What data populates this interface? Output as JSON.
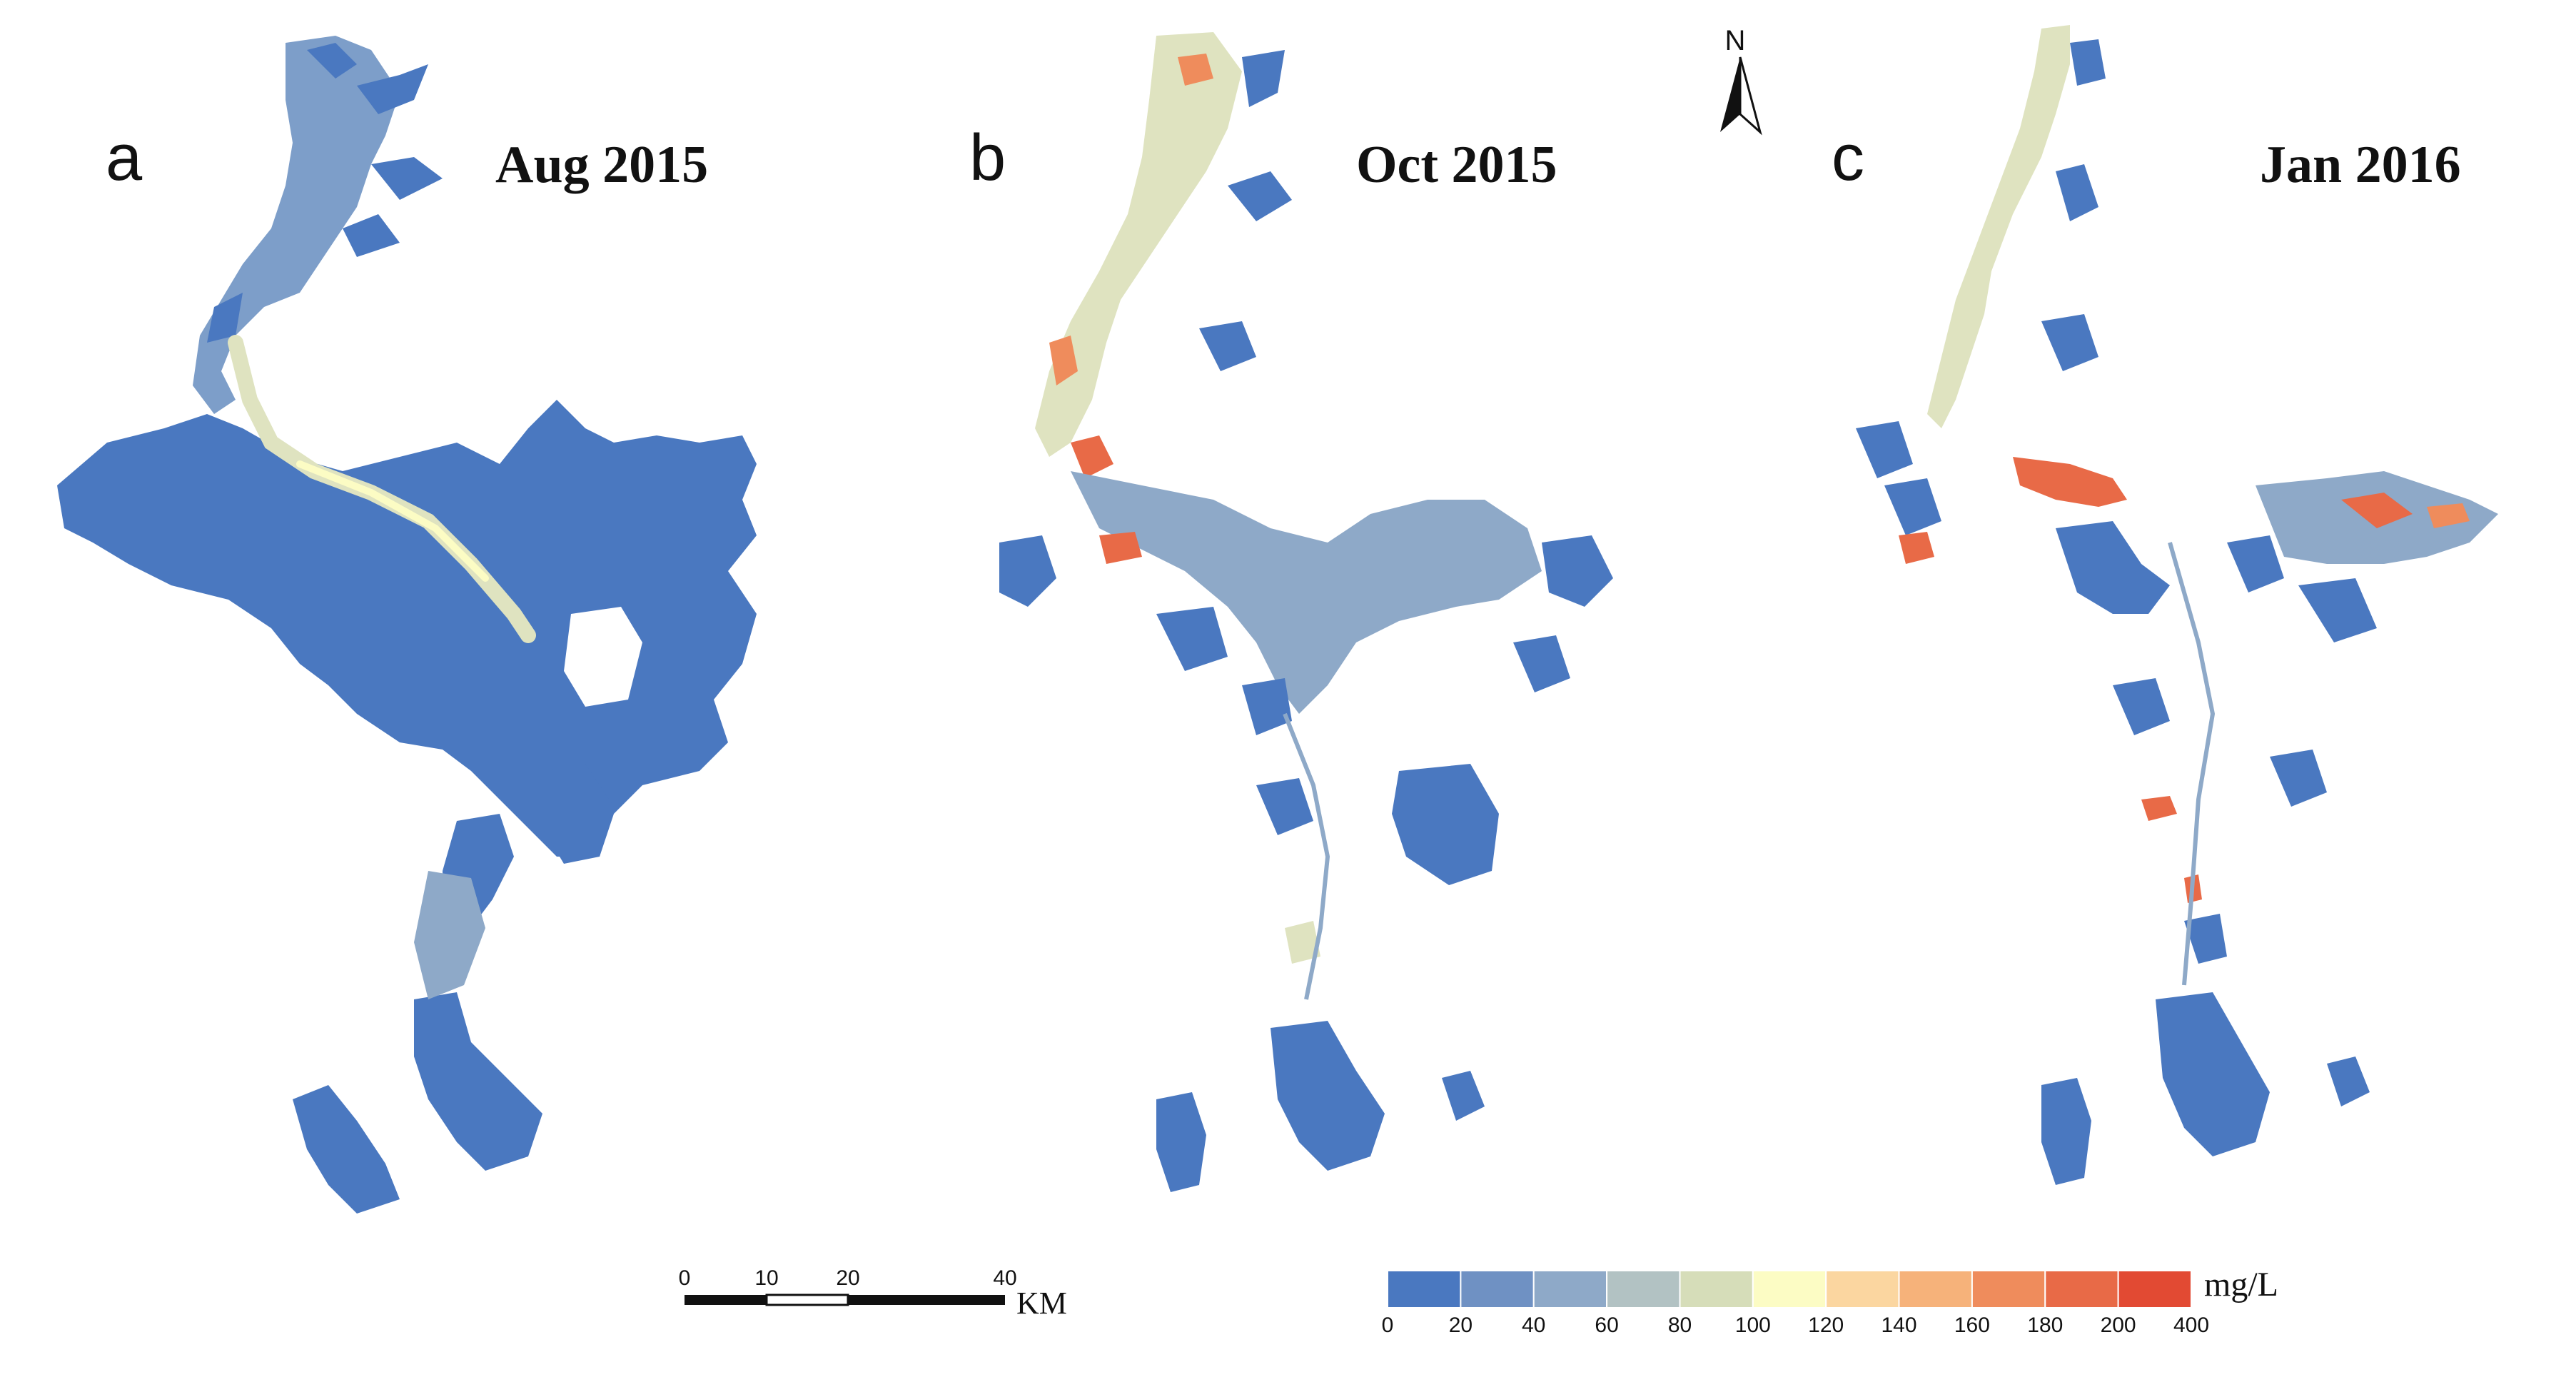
{
  "palette": {
    "water_low": "#4a78c0",
    "water_mid": "#8ea9c8",
    "channel": "#dfe3c0",
    "warm": "#f6b27a",
    "hot": "#e24a33"
  },
  "panels": [
    {
      "letter": "a",
      "date": "Aug 2015"
    },
    {
      "letter": "b",
      "date": "Oct 2015"
    },
    {
      "letter": "c",
      "date": "Jan 2016"
    }
  ],
  "north_arrow": {
    "label": "N"
  },
  "scale_bar": {
    "ticks": [
      "0",
      "10",
      "20",
      "40"
    ],
    "unit": "KM"
  },
  "legend": {
    "unit": "mg/L",
    "ticks": [
      "0",
      "20",
      "40",
      "60",
      "80",
      "100",
      "120",
      "140",
      "160",
      "180",
      "200",
      "400"
    ],
    "colors": [
      "#4a78c0",
      "#6f91c3",
      "#8ea9c8",
      "#b2c2c3",
      "#d6ddb9",
      "#fcfcc4",
      "#fbd6a0",
      "#f6b27a",
      "#ef8c5c",
      "#e86a47",
      "#e24a33"
    ]
  }
}
